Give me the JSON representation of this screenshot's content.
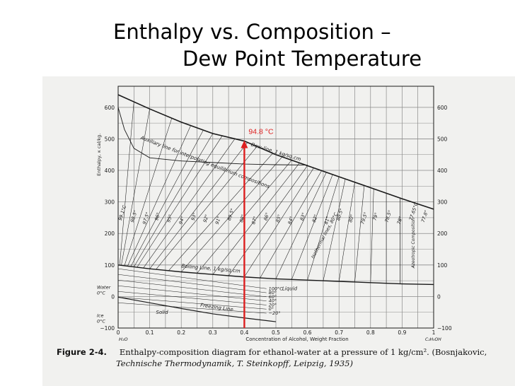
{
  "slide": {
    "title_line1": "Enthalpy vs. Composition –",
    "title_line2": "Dew Point Temperature"
  },
  "colors": {
    "highlight": "#dd1f1f",
    "ink": "#1a1a1a",
    "paper": "#f1f1ef"
  },
  "chart_data": {
    "type": "line",
    "title": "",
    "xlabel": "Concentration of Alcohol, Weight Fraction",
    "ylabel": "Enthalpy, κ cal/kg.",
    "x_ticks": [
      "0",
      "0.1",
      "0.2",
      "0.3",
      "0.4",
      "0.5",
      "0.6",
      "0.7",
      "0.8",
      "0.9",
      "1"
    ],
    "x_tick_values": [
      0,
      0.1,
      0.2,
      0.3,
      0.4,
      0.5,
      0.6,
      0.7,
      0.8,
      0.9,
      1
    ],
    "y_ticks": [
      "600",
      "500",
      "400",
      "300",
      "200",
      "100",
      "0",
      "−100"
    ],
    "y_tick_values": [
      600,
      500,
      400,
      300,
      200,
      100,
      0,
      -100
    ],
    "xlim": [
      0,
      1
    ],
    "ylim": [
      -100,
      640
    ],
    "grid": true,
    "x_end_labels": {
      "left": "H₂O",
      "right": "C₂H₅OH"
    },
    "side_labels_left": [
      {
        "text": "Water 0°C",
        "y": 20
      },
      {
        "text": "Ice 0°C",
        "y": -70
      }
    ],
    "series": [
      {
        "name": "Dew-line, 1 kg/sq.cm",
        "x": [
          0,
          0.1,
          0.2,
          0.3,
          0.4,
          0.5,
          0.6,
          0.7,
          0.8,
          0.9,
          1.0
        ],
        "y": [
          640,
          595,
          553,
          517,
          493,
          450,
          415,
          380,
          345,
          310,
          277
        ]
      },
      {
        "name": "Auxiliary line for interpolating equilibrium compositions",
        "x": [
          0.0,
          0.02,
          0.05,
          0.1,
          0.2,
          0.3,
          0.4,
          0.5,
          0.6
        ],
        "y": [
          600,
          530,
          470,
          440,
          430,
          425,
          420,
          418,
          417
        ]
      },
      {
        "name": "Boiling Line, 1 kg/sq.cm",
        "x": [
          0,
          0.1,
          0.2,
          0.3,
          0.4,
          0.5,
          0.6,
          0.7,
          0.8,
          0.9,
          1.0
        ],
        "y": [
          100,
          88,
          78,
          70,
          62,
          56,
          52,
          48,
          44,
          40,
          38
        ]
      },
      {
        "name": "Freezing Line",
        "x": [
          0,
          0.1,
          0.2,
          0.3,
          0.4,
          0.5
        ],
        "y": [
          -2,
          -20,
          -38,
          -55,
          -68,
          -80
        ]
      }
    ],
    "tie_line_labels": [
      "99.1°C",
      "98.5°",
      "97.5°",
      "96°",
      "95°",
      "94°",
      "93°",
      "92°",
      "91°",
      "89.5°",
      "88°",
      "87°",
      "86°",
      "85°",
      "84°",
      "83°",
      "82°",
      "81°",
      "80.5°",
      "80°",
      "79.5°",
      "79°",
      "78.5°",
      "78°",
      "77.65°C",
      "77.8°"
    ],
    "isotherm_labels": [
      "100°C",
      "80°",
      "60°",
      "40°",
      "20°",
      "0°",
      "−20°"
    ],
    "region_labels": {
      "liquid": "Liquid",
      "solid": "Solid",
      "isothermal": "Isothermal lines, 80°C",
      "azeotropic": "Azeotropic Composition"
    },
    "annotation": {
      "text": "94.8 °C",
      "x": 0.4,
      "y_from": -100,
      "y_to": 493
    }
  },
  "caption": {
    "label": "Figure 2-4.",
    "line1": "Enthalpy-composition diagram for ethanol-water at a pressure of 1 kg/cm². (Bosnjakovic,",
    "line2": "Technische Thermodynamik, T. Steinkopff, Leipzig, 1935)"
  }
}
